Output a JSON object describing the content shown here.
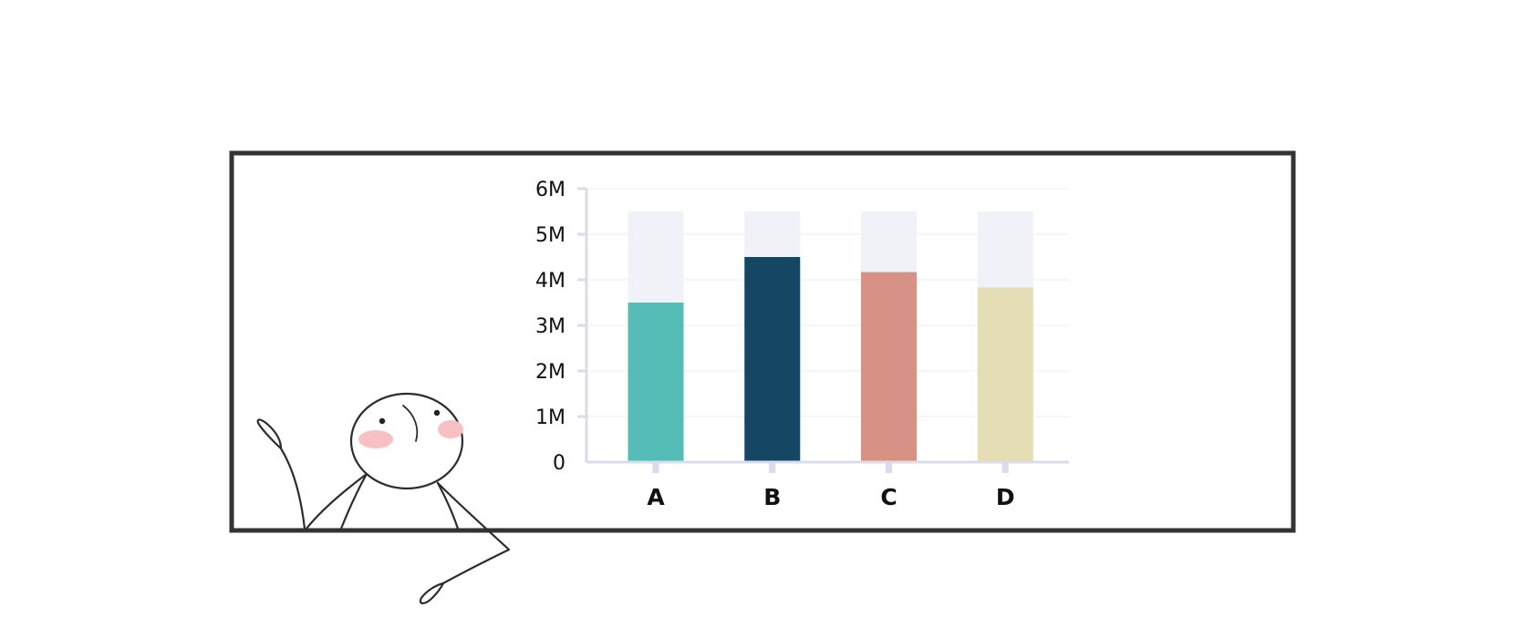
{
  "chart_data": {
    "type": "bar",
    "categories": [
      "A",
      "B",
      "C",
      "D"
    ],
    "values": [
      3500000,
      4500000,
      4170000,
      3830000
    ],
    "background_bar_value": 5500000,
    "y_ticks": [
      "0",
      "1M",
      "2M",
      "3M",
      "4M",
      "5M",
      "6M"
    ],
    "ylim": [
      0,
      6000000
    ],
    "grid": true,
    "legend": "none",
    "colors": [
      "#55bdb6",
      "#154764",
      "#d89285",
      "#e5ddb5"
    ],
    "background_bar_color": "#f0f2f8",
    "axis_color": "#dadcec",
    "gridline_color": "#eef0f5"
  },
  "frame": {
    "border_color": "#333333"
  },
  "illustration": {
    "icon": "stick-figure-pointing-icon",
    "cheek_color": "#f6c0c5"
  }
}
